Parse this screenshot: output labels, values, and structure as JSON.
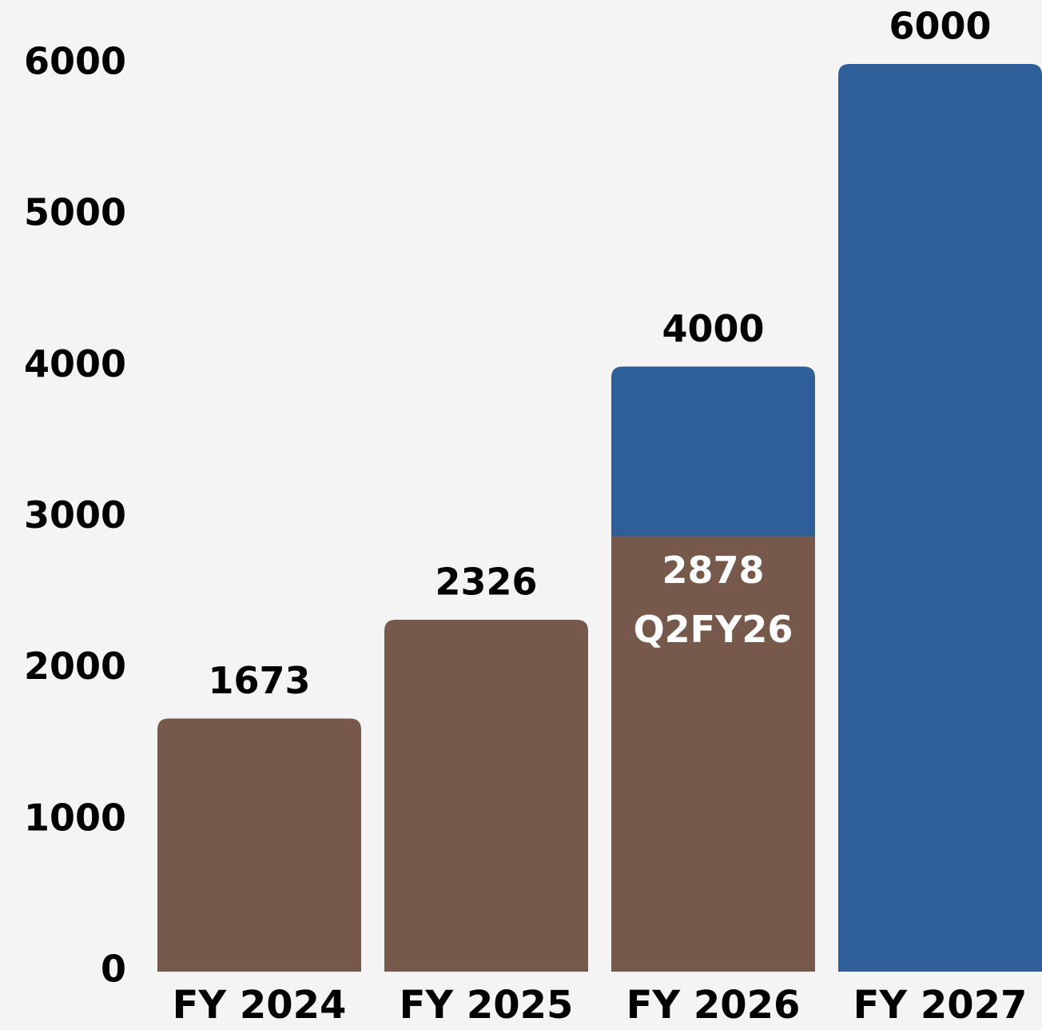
{
  "chart_data": {
    "type": "bar",
    "overlap": true,
    "categories": [
      "FY 2024",
      "FY 2025",
      "FY 2026",
      "FY 2027"
    ],
    "series": [
      {
        "color": "#2e5f98",
        "values": [
          null,
          null,
          4000,
          6000
        ]
      },
      {
        "color": "#77594b",
        "values": [
          1673,
          2326,
          2878,
          null
        ],
        "value_notes": [
          null,
          null,
          "Q2FY26",
          null
        ]
      }
    ],
    "ylim": [
      0,
      6000
    ],
    "yticks": [
      0,
      1000,
      2000,
      3000,
      4000,
      5000,
      6000
    ],
    "grid": false
  }
}
